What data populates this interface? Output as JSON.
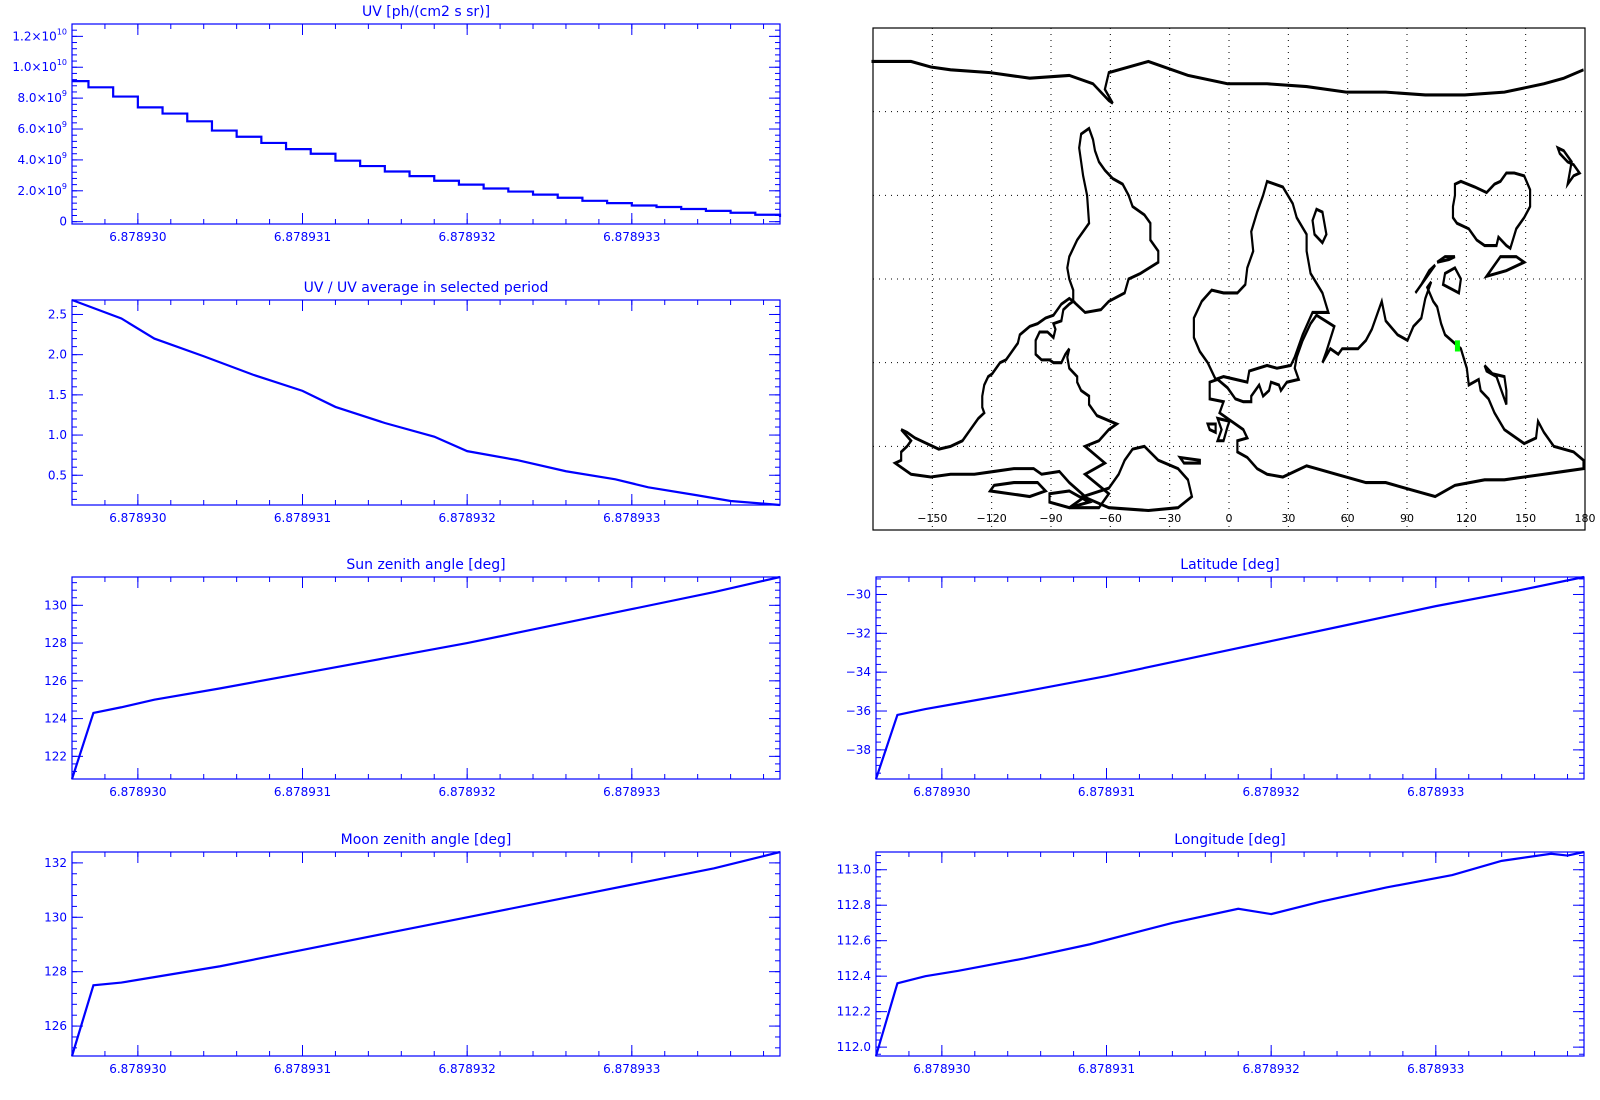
{
  "colors": {
    "axis": "#0000ff",
    "series": "#0000ff",
    "map_coast": "#000000",
    "track": "#00ff00"
  },
  "chart_data": [
    {
      "id": "uv",
      "type": "line",
      "step": true,
      "title": "UV [ph/(cm2 s sr)]",
      "xlim": [
        6.8789296,
        6.8789339
      ],
      "ylim": [
        -150000000.0,
        12800000000.0
      ],
      "xticks": [
        6.87893,
        6.878931,
        6.878932,
        6.878933
      ],
      "xticklabels": [
        "6.878930",
        "6.878931",
        "6.878932",
        "6.878933"
      ],
      "yticks": [
        0,
        2000000000.0,
        4000000000.0,
        6000000000.0,
        8000000000.0,
        10000000000.0,
        12000000000.0
      ],
      "yticklabels": [
        {
          "mant": "0",
          "exp": ""
        },
        {
          "mant": "2.0×10",
          "exp": "9"
        },
        {
          "mant": "4.0×10",
          "exp": "9"
        },
        {
          "mant": "6.0×10",
          "exp": "9"
        },
        {
          "mant": "8.0×10",
          "exp": "9"
        },
        {
          "mant": "1.0×10",
          "exp": "10"
        },
        {
          "mant": "1.2×10",
          "exp": "10"
        }
      ],
      "x": [
        6.8789296,
        6.8789297,
        6.87892985,
        6.87893,
        6.87893015,
        6.8789303,
        6.87893045,
        6.8789306,
        6.87893075,
        6.8789309,
        6.87893105,
        6.8789312,
        6.87893135,
        6.8789315,
        6.87893165,
        6.8789318,
        6.87893195,
        6.8789321,
        6.87893225,
        6.8789324,
        6.87893255,
        6.8789327,
        6.87893285,
        6.878933,
        6.87893315,
        6.8789333,
        6.87893345,
        6.8789336,
        6.87893375,
        6.8789339
      ],
      "y": [
        9100000000.0,
        8700000000.0,
        8100000000.0,
        7400000000.0,
        7000000000.0,
        6500000000.0,
        5900000000.0,
        5500000000.0,
        5100000000.0,
        4700000000.0,
        4400000000.0,
        3950000000.0,
        3600000000.0,
        3250000000.0,
        2950000000.0,
        2650000000.0,
        2400000000.0,
        2150000000.0,
        1950000000.0,
        1750000000.0,
        1550000000.0,
        1350000000.0,
        1200000000.0,
        1050000000.0,
        950000000.0,
        820000000.0,
        700000000.0,
        580000000.0,
        450000000.0,
        300000000.0
      ]
    },
    {
      "id": "uv-ratio",
      "type": "line",
      "title": "UV / UV average in selected period",
      "xlim": [
        6.8789296,
        6.8789339
      ],
      "ylim": [
        0.13,
        2.68
      ],
      "xticks": [
        6.87893,
        6.878931,
        6.878932,
        6.878933
      ],
      "xticklabels": [
        "6.878930",
        "6.878931",
        "6.878932",
        "6.878933"
      ],
      "yticks": [
        0.5,
        1.0,
        1.5,
        2.0,
        2.5
      ],
      "yticklabels": [
        "0.5",
        "1.0",
        "1.5",
        "2.0",
        "2.5"
      ],
      "x": [
        6.8789296,
        6.8789299,
        6.8789301,
        6.8789304,
        6.8789307,
        6.878931,
        6.8789312,
        6.8789315,
        6.8789318,
        6.878932,
        6.8789323,
        6.8789326,
        6.8789329,
        6.8789331,
        6.8789334,
        6.8789336,
        6.8789339
      ],
      "y": [
        2.68,
        2.45,
        2.2,
        1.98,
        1.75,
        1.55,
        1.35,
        1.15,
        0.98,
        0.8,
        0.69,
        0.55,
        0.45,
        0.35,
        0.25,
        0.18,
        0.13
      ]
    },
    {
      "id": "sun-zenith",
      "type": "line",
      "title": "Sun zenith angle [deg]",
      "xlim": [
        6.8789296,
        6.8789339
      ],
      "ylim": [
        120.8,
        131.5
      ],
      "xticks": [
        6.87893,
        6.878931,
        6.878932,
        6.878933
      ],
      "xticklabels": [
        "6.878930",
        "6.878931",
        "6.878932",
        "6.878933"
      ],
      "yticks": [
        122,
        124,
        126,
        128,
        130
      ],
      "yticklabels": [
        "122",
        "124",
        "126",
        "128",
        "130"
      ],
      "x": [
        6.8789296,
        6.87892973,
        6.8789299,
        6.8789301,
        6.8789305,
        6.878931,
        6.8789315,
        6.878932,
        6.8789325,
        6.878933,
        6.8789335,
        6.8789339
      ],
      "y": [
        120.8,
        124.3,
        124.6,
        125.0,
        125.6,
        126.4,
        127.2,
        128.0,
        128.9,
        129.8,
        130.7,
        131.5
      ]
    },
    {
      "id": "latitude",
      "type": "line",
      "title": "Latitude [deg]",
      "xlim": [
        6.8789296,
        6.8789339
      ],
      "ylim": [
        -39.5,
        -29.1
      ],
      "xticks": [
        6.87893,
        6.878931,
        6.878932,
        6.878933
      ],
      "xticklabels": [
        "6.878930",
        "6.878931",
        "6.878932",
        "6.878933"
      ],
      "yticks": [
        -38,
        -36,
        -34,
        -32,
        -30
      ],
      "yticklabels": [
        "−38",
        "−36",
        "−34",
        "−32",
        "−30"
      ],
      "x": [
        6.8789296,
        6.87892973,
        6.8789299,
        6.8789301,
        6.8789305,
        6.878931,
        6.8789315,
        6.878932,
        6.8789325,
        6.878933,
        6.8789335,
        6.8789339
      ],
      "y": [
        -39.5,
        -36.2,
        -35.9,
        -35.6,
        -35.0,
        -34.2,
        -33.3,
        -32.4,
        -31.5,
        -30.6,
        -29.8,
        -29.1
      ]
    },
    {
      "id": "moon-zenith",
      "type": "line",
      "title": "Moon zenith angle [deg]",
      "xlim": [
        6.8789296,
        6.8789339
      ],
      "ylim": [
        124.9,
        132.4
      ],
      "xticks": [
        6.87893,
        6.878931,
        6.878932,
        6.878933
      ],
      "xticklabels": [
        "6.878930",
        "6.878931",
        "6.878932",
        "6.878933"
      ],
      "yticks": [
        126,
        128,
        130,
        132
      ],
      "yticklabels": [
        "126",
        "128",
        "130",
        "132"
      ],
      "x": [
        6.8789296,
        6.87892973,
        6.8789299,
        6.8789301,
        6.8789305,
        6.878931,
        6.8789315,
        6.878932,
        6.8789325,
        6.878933,
        6.8789335,
        6.8789339
      ],
      "y": [
        124.9,
        127.5,
        127.6,
        127.8,
        128.2,
        128.8,
        129.4,
        130.0,
        130.6,
        131.2,
        131.8,
        132.4
      ]
    },
    {
      "id": "longitude",
      "type": "line",
      "title": "Longitude [deg]",
      "xlim": [
        6.8789296,
        6.8789339
      ],
      "ylim": [
        111.95,
        113.1
      ],
      "xticks": [
        6.87893,
        6.878931,
        6.878932,
        6.878933
      ],
      "xticklabels": [
        "6.878930",
        "6.878931",
        "6.878932",
        "6.878933"
      ],
      "yticks": [
        112.0,
        112.2,
        112.4,
        112.6,
        112.8,
        113.0
      ],
      "yticklabels": [
        "112.0",
        "112.2",
        "112.4",
        "112.6",
        "112.8",
        "113.0"
      ],
      "x": [
        6.8789296,
        6.87892973,
        6.8789299,
        6.8789301,
        6.8789305,
        6.8789309,
        6.8789314,
        6.8789318,
        6.878932,
        6.8789323,
        6.8789327,
        6.8789331,
        6.8789334,
        6.8789337,
        6.8789338,
        6.8789339
      ],
      "y": [
        111.95,
        112.36,
        112.4,
        112.43,
        112.5,
        112.58,
        112.7,
        112.78,
        112.75,
        112.82,
        112.9,
        112.97,
        113.05,
        113.09,
        113.08,
        113.1
      ]
    }
  ],
  "map": {
    "lon_labels": [
      "−150",
      "−120",
      "−90",
      "−60",
      "−30",
      "0",
      "30",
      "60",
      "90",
      "120",
      "150",
      "180"
    ],
    "track": {
      "lon": [
        115.5,
        115.5
      ],
      "lat": [
        -22,
        -26
      ]
    }
  }
}
